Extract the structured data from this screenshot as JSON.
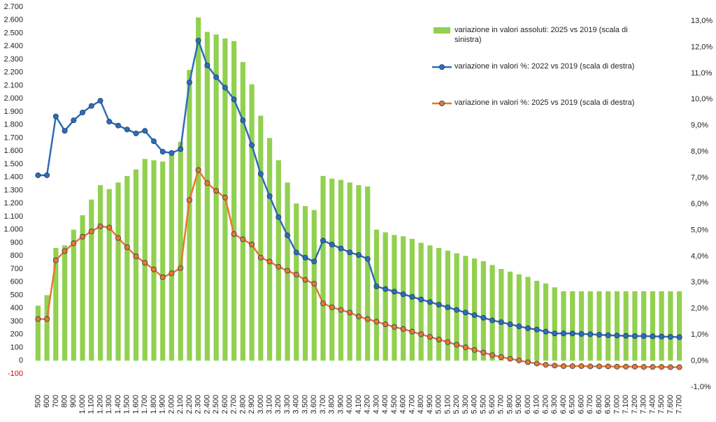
{
  "chart_data": {
    "type": "bar_line",
    "categories": [
      "500",
      "600",
      "700",
      "800",
      "900",
      "1.000",
      "1.100",
      "1.200",
      "1.300",
      "1.400",
      "1.500",
      "1.600",
      "1.700",
      "1.800",
      "1.900",
      "2.000",
      "2.100",
      "2.200",
      "2.300",
      "2.400",
      "2.500",
      "2.600",
      "2.700",
      "2.800",
      "2.900",
      "3.000",
      "3.100",
      "3.200",
      "3.300",
      "3.400",
      "3.500",
      "3.600",
      "3.700",
      "3.800",
      "3.900",
      "4.000",
      "4.100",
      "4.200",
      "4.300",
      "4.400",
      "4.500",
      "4.600",
      "4.700",
      "4.800",
      "4.900",
      "5.000",
      "5.100",
      "5.200",
      "5.300",
      "5.400",
      "5.500",
      "5.600",
      "5.700",
      "5.800",
      "5.900",
      "6.000",
      "6.100",
      "6.200",
      "6.300",
      "6.400",
      "6.500",
      "6.600",
      "6.700",
      "6.800",
      "6.900",
      "7.000",
      "7.100",
      "7.200",
      "7.300",
      "7.400",
      "7.500",
      "7.600",
      "7.700"
    ],
    "series": [
      {
        "name": "variazione in valori assoluti: 2025 vs 2019 (scala di sinistra)",
        "kind": "bar",
        "axis": "y",
        "color": "#92d050",
        "values": [
          420,
          500,
          860,
          880,
          1000,
          1110,
          1230,
          1340,
          1310,
          1360,
          1410,
          1460,
          1540,
          1530,
          1520,
          1600,
          1670,
          2220,
          2620,
          2510,
          2490,
          2460,
          2440,
          2280,
          2110,
          1870,
          1700,
          1530,
          1360,
          1200,
          1180,
          1150,
          1410,
          1390,
          1380,
          1360,
          1340,
          1330,
          1000,
          980,
          960,
          950,
          930,
          900,
          880,
          860,
          840,
          820,
          800,
          780,
          760,
          730,
          700,
          680,
          660,
          640,
          610,
          590,
          560,
          530,
          530,
          530,
          530,
          530,
          530,
          530,
          530,
          530,
          530,
          530,
          530,
          530,
          530
        ]
      },
      {
        "name": "variazione in valori %: 2022 vs 2019 (scala di destra)",
        "kind": "line",
        "axis": "y2",
        "color": "#2e6db5",
        "values": [
          7.1,
          7.1,
          9.35,
          8.8,
          9.2,
          9.5,
          9.75,
          9.95,
          9.15,
          9.0,
          8.85,
          8.7,
          8.8,
          8.4,
          8.0,
          7.95,
          8.1,
          10.65,
          12.25,
          11.3,
          10.85,
          10.45,
          10.0,
          9.2,
          8.25,
          7.15,
          6.3,
          5.5,
          4.8,
          4.15,
          3.95,
          3.8,
          4.6,
          4.45,
          4.3,
          4.15,
          4.05,
          3.9,
          2.85,
          2.75,
          2.65,
          2.55,
          2.45,
          2.35,
          2.25,
          2.15,
          2.05,
          1.95,
          1.85,
          1.75,
          1.65,
          1.55,
          1.48,
          1.4,
          1.32,
          1.25,
          1.2,
          1.12,
          1.05,
          1.05,
          1.05,
          1.03,
          1.02,
          1.0,
          0.98,
          0.97,
          0.96,
          0.95,
          0.95,
          0.94,
          0.93,
          0.92,
          0.91
        ]
      },
      {
        "name": "variazione in valori %: 2025 vs 2019 (scala di destra)",
        "kind": "line",
        "axis": "y2",
        "color": "#e8772e",
        "values": [
          1.6,
          1.6,
          3.85,
          4.2,
          4.5,
          4.75,
          4.95,
          5.15,
          5.1,
          4.7,
          4.35,
          4.0,
          3.75,
          3.5,
          3.2,
          3.35,
          3.55,
          6.15,
          7.3,
          6.8,
          6.5,
          6.25,
          4.85,
          4.65,
          4.45,
          3.95,
          3.8,
          3.6,
          3.45,
          3.3,
          3.1,
          2.95,
          2.2,
          2.05,
          1.95,
          1.85,
          1.7,
          1.6,
          1.5,
          1.4,
          1.3,
          1.22,
          1.12,
          1.02,
          0.92,
          0.82,
          0.72,
          0.62,
          0.52,
          0.42,
          0.32,
          0.22,
          0.15,
          0.08,
          0.02,
          -0.05,
          -0.1,
          -0.15,
          -0.18,
          -0.2,
          -0.2,
          -0.2,
          -0.21,
          -0.21,
          -0.21,
          -0.22,
          -0.22,
          -0.22,
          -0.23,
          -0.23,
          -0.23,
          -0.24,
          -0.24
        ]
      }
    ],
    "ylim": [
      -100,
      2700
    ],
    "yticks": [
      -100,
      0,
      100,
      200,
      300,
      400,
      500,
      600,
      700,
      800,
      900,
      {
        "value": 1000,
        "label": "1.000"
      },
      {
        "value": 1100,
        "label": "1.100"
      },
      {
        "value": 1200,
        "label": "1.200"
      },
      {
        "value": 1300,
        "label": "1.300"
      },
      {
        "value": 1400,
        "label": "1.400"
      },
      {
        "value": 1500,
        "label": "1.500"
      },
      {
        "value": 1600,
        "label": "1.600"
      },
      {
        "value": 1700,
        "label": "1.700"
      },
      {
        "value": 1800,
        "label": "1.800"
      },
      {
        "value": 1900,
        "label": "1.900"
      },
      {
        "value": 2000,
        "label": "2.000"
      },
      {
        "value": 2100,
        "label": "2.100"
      },
      {
        "value": 2200,
        "label": "2.200"
      },
      {
        "value": 2300,
        "label": "2.300"
      },
      {
        "value": 2400,
        "label": "2.400"
      },
      {
        "value": 2500,
        "label": "2.500"
      },
      {
        "value": 2600,
        "label": "2.600"
      },
      {
        "value": 2700,
        "label": "2.700"
      }
    ],
    "y2lim": [
      -1,
      13
    ],
    "y2ticks": [
      {
        "value": -1,
        "label": "-1,0%"
      },
      {
        "value": 0,
        "label": "0,0%"
      },
      {
        "value": 1,
        "label": "1,0%"
      },
      {
        "value": 2,
        "label": "2,0%"
      },
      {
        "value": 3,
        "label": "3,0%"
      },
      {
        "value": 4,
        "label": "4,0%"
      },
      {
        "value": 5,
        "label": "5,0%"
      },
      {
        "value": 6,
        "label": "6,0%"
      },
      {
        "value": 7,
        "label": "7,0%"
      },
      {
        "value": 8,
        "label": "8,0%"
      },
      {
        "value": 9,
        "label": "9,0%"
      },
      {
        "value": 10,
        "label": "10,0%"
      },
      {
        "value": 11,
        "label": "11,0%"
      },
      {
        "value": 12,
        "label": "12,0%"
      },
      {
        "value": 13,
        "label": "13,0%"
      }
    ],
    "negative_tick_color": "#e00000",
    "grid": false
  }
}
